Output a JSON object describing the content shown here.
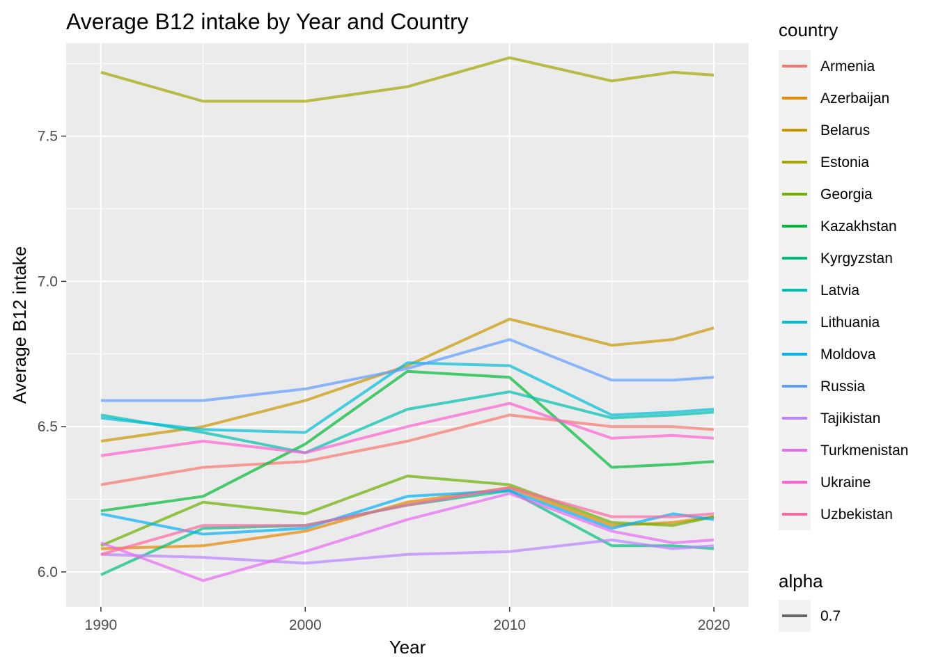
{
  "chart_data": {
    "type": "line",
    "title": "Average B12 intake by Year and Country",
    "xlabel": "Year",
    "ylabel": "Average B12 intake",
    "xlim": [
      1988.3,
      2021.7
    ],
    "ylim": [
      5.88,
      7.82
    ],
    "x_ticks": [
      1990,
      2000,
      2010,
      2020
    ],
    "x_tick_labels": [
      "1990",
      "2000",
      "2010",
      "2020"
    ],
    "y_ticks": [
      6.0,
      6.5,
      7.0,
      7.5
    ],
    "y_tick_labels": [
      "6.0",
      "6.5",
      "7.0",
      "7.5"
    ],
    "grid": true,
    "legend_position": "right",
    "legend_title": "country",
    "alpha_legend": {
      "title": "alpha",
      "label": "0.7",
      "color": "#666666"
    },
    "line_opacity": 0.7,
    "x": [
      1990,
      1995,
      2000,
      2005,
      2010,
      2015,
      2018,
      2020
    ],
    "series": [
      {
        "name": "Armenia",
        "color": "#F8766D",
        "values": [
          6.3,
          6.36,
          6.38,
          6.45,
          6.54,
          6.5,
          6.5,
          6.49
        ]
      },
      {
        "name": "Azerbaijan",
        "color": "#E58700",
        "values": [
          6.08,
          6.09,
          6.14,
          6.24,
          6.29,
          6.16,
          6.17,
          6.19
        ]
      },
      {
        "name": "Belarus",
        "color": "#C99800",
        "values": [
          6.45,
          6.5,
          6.59,
          6.71,
          6.87,
          6.78,
          6.8,
          6.84
        ]
      },
      {
        "name": "Estonia",
        "color": "#A3A500",
        "values": [
          7.72,
          7.62,
          7.62,
          7.67,
          7.77,
          7.69,
          7.72,
          7.71
        ]
      },
      {
        "name": "Georgia",
        "color": "#6BB100",
        "values": [
          6.09,
          6.24,
          6.2,
          6.33,
          6.3,
          6.17,
          6.16,
          6.19
        ]
      },
      {
        "name": "Kazakhstan",
        "color": "#00BA38",
        "values": [
          6.21,
          6.26,
          6.44,
          6.69,
          6.67,
          6.36,
          6.37,
          6.38
        ]
      },
      {
        "name": "Kyrgyzstan",
        "color": "#00BF7D",
        "values": [
          5.99,
          6.15,
          6.16,
          6.23,
          6.28,
          6.09,
          6.09,
          6.08
        ]
      },
      {
        "name": "Latvia",
        "color": "#00C0AF",
        "values": [
          6.54,
          6.48,
          6.41,
          6.56,
          6.62,
          6.53,
          6.54,
          6.55
        ]
      },
      {
        "name": "Lithuania",
        "color": "#00BCD8",
        "values": [
          6.53,
          6.49,
          6.48,
          6.72,
          6.71,
          6.54,
          6.55,
          6.56
        ]
      },
      {
        "name": "Moldova",
        "color": "#00B0F6",
        "values": [
          6.2,
          6.13,
          6.15,
          6.26,
          6.28,
          6.15,
          6.2,
          6.18
        ]
      },
      {
        "name": "Russia",
        "color": "#619CFF",
        "values": [
          6.59,
          6.59,
          6.63,
          6.7,
          6.8,
          6.66,
          6.66,
          6.67
        ]
      },
      {
        "name": "Tajikistan",
        "color": "#B983FF",
        "values": [
          6.06,
          6.05,
          6.03,
          6.06,
          6.07,
          6.11,
          6.08,
          6.09
        ]
      },
      {
        "name": "Turkmenistan",
        "color": "#E76BF3",
        "values": [
          6.1,
          5.97,
          6.07,
          6.18,
          6.27,
          6.14,
          6.1,
          6.11
        ]
      },
      {
        "name": "Ukraine",
        "color": "#FD61D1",
        "values": [
          6.4,
          6.45,
          6.41,
          6.5,
          6.58,
          6.46,
          6.47,
          6.46
        ]
      },
      {
        "name": "Uzbekistan",
        "color": "#FF67A4",
        "values": [
          6.06,
          6.16,
          6.16,
          6.23,
          6.29,
          6.19,
          6.19,
          6.2
        ]
      }
    ]
  }
}
